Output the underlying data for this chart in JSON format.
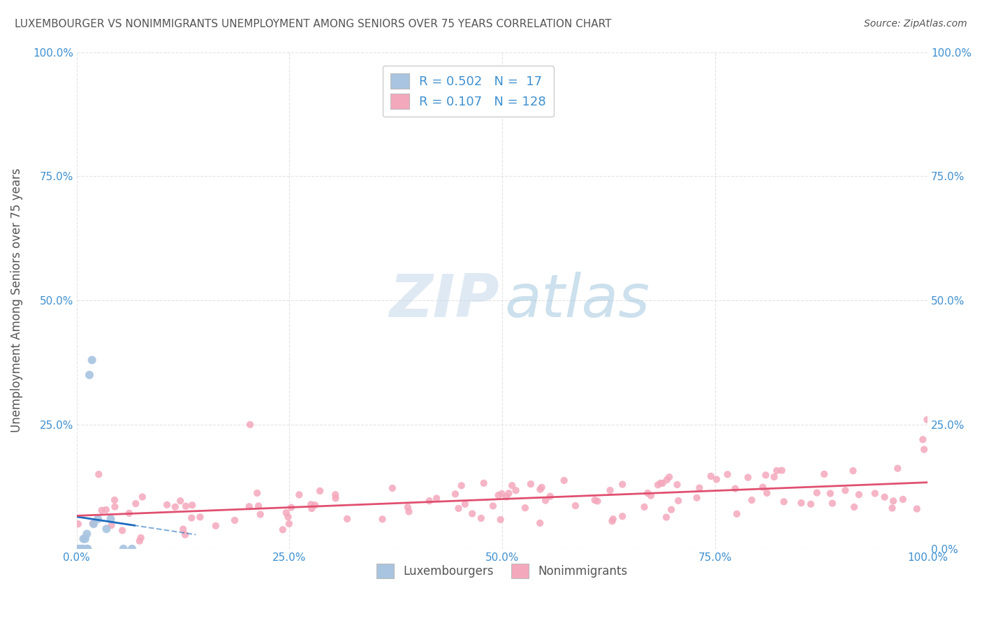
{
  "title": "LUXEMBOURGER VS NONIMMIGRANTS UNEMPLOYMENT AMONG SENIORS OVER 75 YEARS CORRELATION CHART",
  "source": "Source: ZipAtlas.com",
  "ylabel": "Unemployment Among Seniors over 75 years",
  "lux_R": 0.502,
  "lux_N": 17,
  "non_R": 0.107,
  "non_N": 128,
  "lux_color": "#a8c4e0",
  "lux_line_color": "#1f6dbf",
  "non_color": "#f4a8bc",
  "non_line_color": "#e05070",
  "xlim": [
    0,
    1.0
  ],
  "ylim": [
    0,
    1.0
  ],
  "xticks": [
    0.0,
    0.25,
    0.5,
    0.75,
    1.0
  ],
  "yticks": [
    0.0,
    0.25,
    0.5,
    0.75,
    1.0
  ],
  "xticklabels": [
    "0.0%",
    "25.0%",
    "50.0%",
    "75.0%",
    "100.0%"
  ],
  "right_yticklabels": [
    "0.0%",
    "25.0%",
    "50.0%",
    "75.0%",
    "100.0%"
  ],
  "background": "#ffffff",
  "grid_color": "#dddddd",
  "title_color": "#555555",
  "axis_label_color": "#555555",
  "tick_color": "#4090d0",
  "lux_scatter_x": [
    0.0,
    0.003,
    0.006,
    0.008,
    0.008,
    0.01,
    0.012,
    0.012,
    0.013,
    0.015,
    0.018,
    0.02,
    0.025,
    0.035,
    0.04,
    0.055,
    0.065
  ],
  "lux_scatter_y": [
    0.0,
    0.0,
    0.0,
    0.0,
    0.02,
    0.02,
    0.03,
    0.0,
    0.0,
    0.35,
    0.38,
    0.05,
    0.06,
    0.04,
    0.06,
    0.0,
    0.0
  ]
}
